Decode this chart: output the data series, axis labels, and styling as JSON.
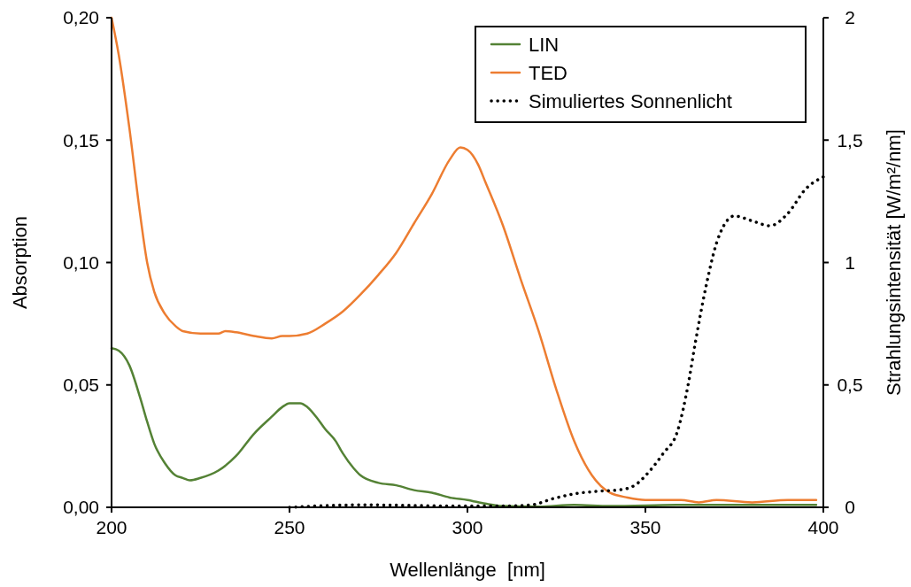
{
  "chart_data": {
    "type": "line",
    "xlabel": "Wellenlänge  [nm]",
    "ylabel": "Absorption",
    "y2label": "Strahlungsintensität [W/m²/nm]",
    "xlim": [
      200,
      400
    ],
    "xticks": [
      200,
      250,
      300,
      350,
      400
    ],
    "ylim": [
      0,
      0.2
    ],
    "yticks": [
      {
        "value": 0,
        "label": "0,00"
      },
      {
        "value": 0.05,
        "label": "0,05"
      },
      {
        "value": 0.1,
        "label": "0,10"
      },
      {
        "value": 0.15,
        "label": "0,15"
      },
      {
        "value": 0.2,
        "label": "0,20"
      }
    ],
    "y2lim": [
      0,
      2
    ],
    "y2ticks": [
      0,
      {
        "value": 0.5,
        "label": "0,5"
      },
      1,
      {
        "value": 1.5,
        "label": "1,5"
      },
      2
    ],
    "grid": false,
    "legend": "top right",
    "series": [
      {
        "name": "LIN",
        "color": "#548235",
        "line_style": "solid",
        "x": [
          200,
          202,
          205,
          208,
          210,
          212,
          215,
          218,
          220,
          222,
          225,
          230,
          235,
          240,
          245,
          248,
          250,
          253,
          255,
          258,
          260,
          263,
          265,
          268,
          270,
          275,
          280,
          285,
          290,
          295,
          300,
          305,
          310,
          320,
          330,
          340,
          360,
          380,
          398
        ],
        "values": [
          0.065,
          0.064,
          0.058,
          0.045,
          0.035,
          0.026,
          0.018,
          0.013,
          0.012,
          0.011,
          0.012,
          0.015,
          0.021,
          0.03,
          0.037,
          0.041,
          0.0425,
          0.0425,
          0.041,
          0.036,
          0.032,
          0.027,
          0.022,
          0.016,
          0.013,
          0.01,
          0.009,
          0.007,
          0.006,
          0.004,
          0.003,
          0.0015,
          0.0005,
          0.0003,
          0.001,
          0.0005,
          0.001,
          0.001,
          0.001
        ]
      },
      {
        "name": "TED",
        "color": "#ed7d31",
        "line_style": "solid",
        "x": [
          200,
          202,
          205,
          208,
          210,
          212,
          215,
          218,
          220,
          225,
          230,
          232,
          235,
          240,
          245,
          248,
          250,
          255,
          260,
          265,
          270,
          275,
          280,
          285,
          290,
          295,
          298,
          300,
          303,
          305,
          310,
          315,
          320,
          325,
          330,
          335,
          340,
          345,
          350,
          360,
          365,
          370,
          380,
          390,
          398
        ],
        "values": [
          0.2,
          0.185,
          0.155,
          0.12,
          0.1,
          0.088,
          0.079,
          0.074,
          0.072,
          0.071,
          0.071,
          0.072,
          0.0715,
          0.07,
          0.069,
          0.07,
          0.07,
          0.071,
          0.075,
          0.08,
          0.087,
          0.095,
          0.104,
          0.116,
          0.128,
          0.142,
          0.147,
          0.146,
          0.14,
          0.133,
          0.115,
          0.093,
          0.072,
          0.048,
          0.027,
          0.013,
          0.006,
          0.004,
          0.003,
          0.003,
          0.002,
          0.003,
          0.002,
          0.003,
          0.003
        ]
      },
      {
        "name": "Simuliertes Sonnenlicht",
        "color": "#000000",
        "line_style": "dotted",
        "axis": "y2",
        "x": [
          250,
          270,
          300,
          310,
          318,
          324,
          330,
          336,
          343,
          347,
          351,
          355,
          359,
          362,
          364,
          367,
          370,
          372,
          375,
          380,
          385,
          390,
          395,
          400
        ],
        "values": [
          0,
          0.01,
          0.005,
          0.005,
          0.01,
          0.035,
          0.055,
          0.065,
          0.072,
          0.09,
          0.145,
          0.22,
          0.31,
          0.5,
          0.67,
          0.9,
          1.08,
          1.15,
          1.19,
          1.17,
          1.15,
          1.2,
          1.3,
          1.35
        ]
      }
    ]
  }
}
